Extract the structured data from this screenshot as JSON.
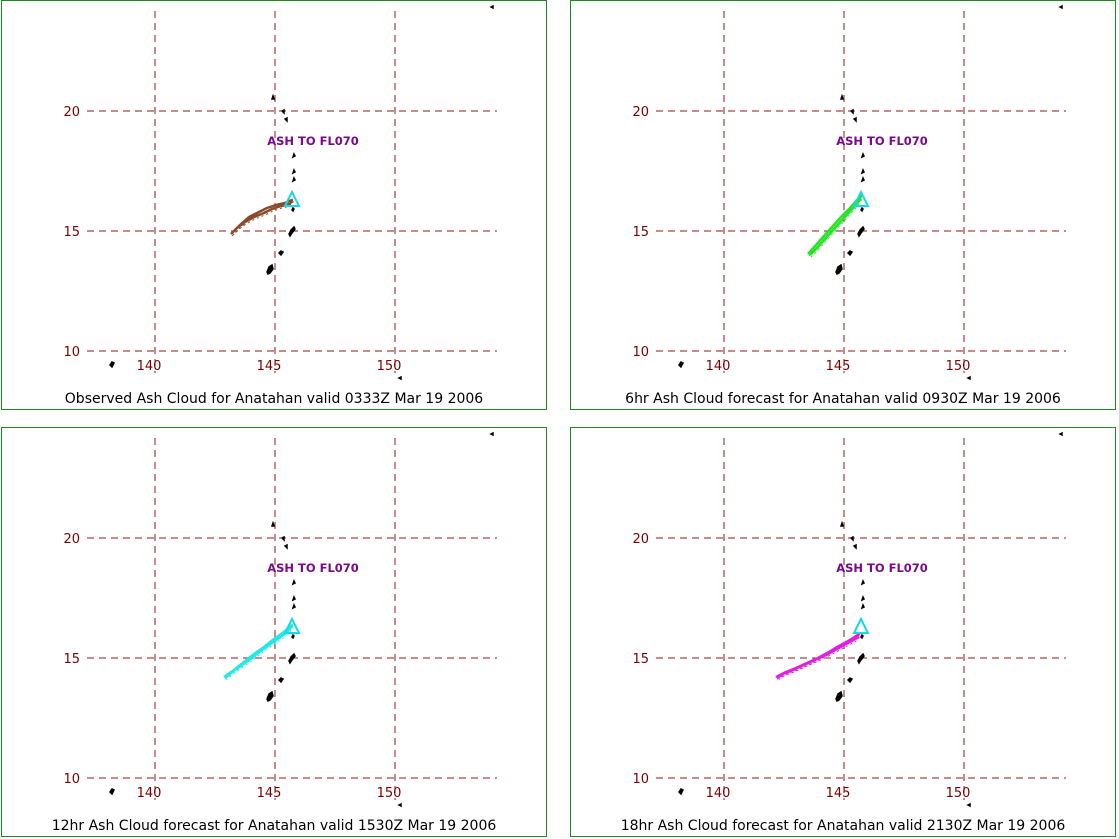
{
  "colors": {
    "border": "#1e8a1e",
    "grid": "#8b1a1a",
    "tick": "#7a0000",
    "label": "#7a0a8a",
    "volcano": "#18d8e8",
    "land": "#000000"
  },
  "map": {
    "lon_ticks": [
      "140",
      "145",
      "150"
    ],
    "lat_ticks": [
      "20",
      "15",
      "10"
    ],
    "volcano_marker": "triangle-icon"
  },
  "panels": [
    {
      "caption": "Observed Ash Cloud for Anatahan valid 0333Z Mar 19 2006",
      "label": "ASH TO FL070",
      "cloud_color": "#8b4a2a"
    },
    {
      "caption": "6hr Ash Cloud forecast for Anatahan valid 0930Z Mar 19 2006",
      "label": "ASH TO FL070",
      "cloud_color": "#22e622"
    },
    {
      "caption": "12hr Ash Cloud forecast for Anatahan valid 1530Z Mar 19 2006",
      "label": "ASH TO FL070",
      "cloud_color": "#22e8e8"
    },
    {
      "caption": "18hr Ash Cloud forecast for Anatahan valid 2130Z Mar 19 2006",
      "label": "ASH TO FL070",
      "cloud_color": "#e020e0"
    }
  ]
}
